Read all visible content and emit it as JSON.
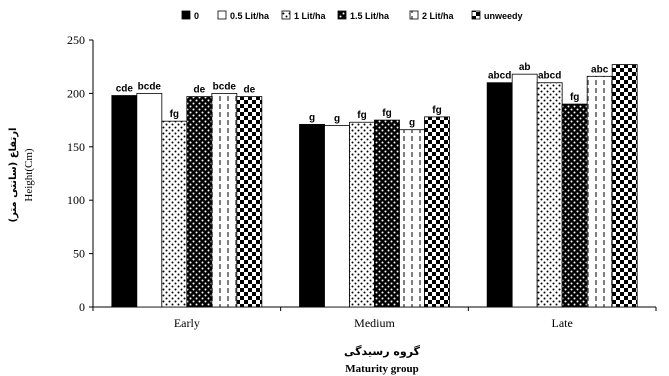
{
  "chart_data": {
    "type": "bar",
    "categories": [
      "Early",
      "Medium",
      "Late"
    ],
    "series": [
      {
        "name": "0",
        "pattern": "solid",
        "values": [
          198,
          171,
          210
        ],
        "labels": [
          "cde",
          "g",
          "abcd"
        ]
      },
      {
        "name": "0.5 Lit/ha",
        "pattern": "white",
        "values": [
          200,
          170,
          218
        ],
        "labels": [
          "bcde",
          "g",
          "ab"
        ]
      },
      {
        "name": "1 Lit/ha",
        "pattern": "dots",
        "values": [
          174,
          173,
          210
        ],
        "labels": [
          "fg",
          "fg",
          "abcd"
        ]
      },
      {
        "name": "1.5 Lit/ha",
        "pattern": "dark-dots",
        "values": [
          197,
          175,
          190
        ],
        "labels": [
          "de",
          "fg",
          "fg"
        ]
      },
      {
        "name": "2 Lit/ha",
        "pattern": "dashed",
        "values": [
          200,
          166,
          216
        ],
        "labels": [
          "bcde",
          "g",
          "abc"
        ]
      },
      {
        "name": "unweedy",
        "pattern": "checker",
        "values": [
          197,
          178,
          227
        ],
        "labels": [
          "de",
          "fg",
          ""
        ]
      }
    ],
    "xlabel_fa": "گروه رسیدگی",
    "xlabel": "Maturity group",
    "ylabel_fa": "ارتفاع (سانتی متر)",
    "ylabel": "Height(Cm)",
    "ylim": [
      0,
      250
    ],
    "yticks": [
      0,
      50,
      100,
      150,
      200,
      250
    ],
    "grid": false,
    "legend_position": "top"
  }
}
